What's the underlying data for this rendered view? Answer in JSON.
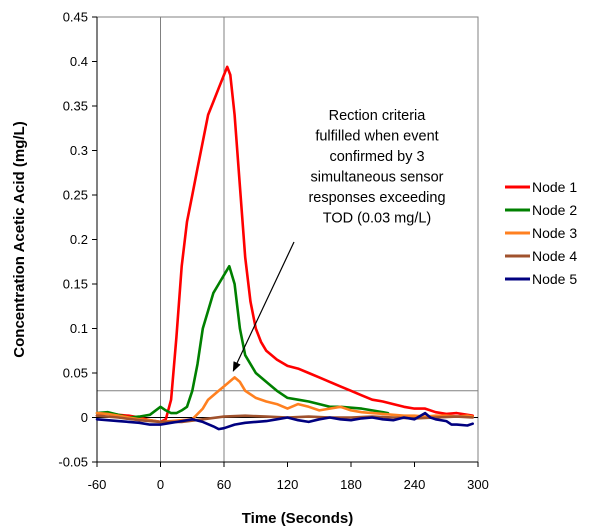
{
  "chart_data": {
    "type": "line",
    "title": "",
    "xlabel": "Time (Seconds)",
    "ylabel": "Concentration Acetic Acid (mg/L)",
    "xlim": [
      -60,
      300
    ],
    "ylim": [
      -0.05,
      0.45
    ],
    "x_ticks": [
      "-60",
      "0",
      "60",
      "120",
      "180",
      "240",
      "300"
    ],
    "x_tick_values": [
      -60,
      0,
      60,
      120,
      180,
      240,
      300
    ],
    "y_ticks": [
      "-0.05",
      "0",
      "0.05",
      "0.1",
      "0.15",
      "0.2",
      "0.25",
      "0.3",
      "0.35",
      "0.4",
      "0.45"
    ],
    "y_tick_values": [
      -0.05,
      0,
      0.05,
      0.1,
      0.15,
      0.2,
      0.25,
      0.3,
      0.35,
      0.4,
      0.45
    ],
    "grid": false,
    "reference_lines": {
      "vertical_x": [
        0,
        60
      ],
      "horizontal_y": [
        0.03
      ]
    },
    "legend": {
      "position": "right"
    },
    "series": [
      {
        "name": "Node 1",
        "color": "#ff0000",
        "x": [
          -60,
          -50,
          -40,
          -30,
          -20,
          -10,
          0,
          5,
          10,
          15,
          20,
          25,
          30,
          35,
          40,
          45,
          50,
          55,
          60,
          63,
          66,
          70,
          75,
          80,
          85,
          90,
          95,
          100,
          110,
          120,
          130,
          140,
          150,
          160,
          170,
          180,
          190,
          200,
          210,
          220,
          230,
          240,
          250,
          260,
          270,
          280,
          290,
          295
        ],
        "y": [
          0.002,
          0.005,
          0.003,
          0.002,
          0,
          -0.003,
          -0.005,
          -0.002,
          0.02,
          0.09,
          0.17,
          0.22,
          0.25,
          0.28,
          0.31,
          0.34,
          0.355,
          0.37,
          0.385,
          0.394,
          0.385,
          0.34,
          0.26,
          0.18,
          0.13,
          0.1,
          0.085,
          0.075,
          0.065,
          0.058,
          0.055,
          0.05,
          0.045,
          0.04,
          0.035,
          0.03,
          0.025,
          0.02,
          0.018,
          0.015,
          0.012,
          0.01,
          0.01,
          0.006,
          0.004,
          0.005,
          0.003,
          0.002
        ]
      },
      {
        "name": "Node 2",
        "color": "#008000",
        "x": [
          -60,
          -50,
          -40,
          -30,
          -20,
          -10,
          0,
          5,
          10,
          15,
          20,
          25,
          30,
          35,
          40,
          45,
          50,
          55,
          60,
          65,
          70,
          75,
          80,
          90,
          100,
          110,
          120,
          130,
          140,
          150,
          160,
          170,
          180,
          190,
          200,
          210,
          215
        ],
        "y": [
          0.005,
          0.006,
          0.003,
          0,
          0.001,
          0.003,
          0.012,
          0.008,
          0.005,
          0.005,
          0.008,
          0.012,
          0.03,
          0.06,
          0.1,
          0.12,
          0.14,
          0.15,
          0.16,
          0.17,
          0.15,
          0.1,
          0.07,
          0.05,
          0.04,
          0.03,
          0.022,
          0.02,
          0.018,
          0.015,
          0.012,
          0.012,
          0.011,
          0.01,
          0.008,
          0.006,
          0.005
        ]
      },
      {
        "name": "Node 3",
        "color": "#ff8020",
        "x": [
          -60,
          -50,
          -40,
          -30,
          -20,
          -10,
          0,
          10,
          20,
          30,
          40,
          45,
          50,
          55,
          60,
          65,
          70,
          75,
          80,
          90,
          100,
          110,
          120,
          130,
          140,
          150,
          160,
          170,
          180,
          190,
          200,
          210,
          220,
          230,
          240,
          250,
          260,
          270,
          280,
          290,
          295
        ],
        "y": [
          0.005,
          0.004,
          0.002,
          0,
          -0.002,
          -0.003,
          -0.005,
          -0.004,
          -0.003,
          -0.002,
          0.01,
          0.02,
          0.025,
          0.03,
          0.035,
          0.04,
          0.045,
          0.04,
          0.03,
          0.022,
          0.018,
          0.015,
          0.01,
          0.015,
          0.012,
          0.008,
          0.01,
          0.012,
          0.008,
          0.006,
          0.005,
          0.004,
          0.003,
          0.002,
          0.002,
          0.001,
          0.002,
          0.002,
          0.001,
          0.002,
          0.001
        ]
      },
      {
        "name": "Node 4",
        "color": "#a0522d",
        "x": [
          -60,
          -40,
          -20,
          0,
          20,
          40,
          60,
          80,
          100,
          120,
          140,
          160,
          180,
          200,
          220,
          240,
          260,
          280,
          295
        ],
        "y": [
          0.002,
          0,
          -0.003,
          -0.005,
          -0.005,
          -0.002,
          0.001,
          0.002,
          0.001,
          0,
          0.001,
          0,
          0,
          0.001,
          0,
          -0.001,
          0,
          0.001,
          0
        ]
      },
      {
        "name": "Node 5",
        "color": "#000080",
        "x": [
          -60,
          -50,
          -40,
          -30,
          -20,
          -10,
          0,
          10,
          20,
          30,
          40,
          50,
          55,
          60,
          70,
          80,
          90,
          100,
          110,
          120,
          130,
          140,
          150,
          160,
          170,
          180,
          190,
          200,
          210,
          220,
          230,
          240,
          250,
          255,
          260,
          270,
          275,
          280,
          290,
          295
        ],
        "y": [
          -0.002,
          -0.003,
          -0.004,
          -0.005,
          -0.006,
          -0.008,
          -0.008,
          -0.006,
          -0.004,
          -0.002,
          -0.005,
          -0.01,
          -0.013,
          -0.012,
          -0.008,
          -0.006,
          -0.005,
          -0.004,
          -0.002,
          0,
          -0.003,
          -0.005,
          -0.002,
          0,
          -0.002,
          -0.003,
          -0.001,
          0,
          -0.002,
          -0.003,
          0,
          -0.002,
          0.005,
          0,
          -0.002,
          -0.004,
          -0.008,
          -0.008,
          -0.009,
          -0.007
        ]
      }
    ],
    "annotation": {
      "lines": [
        "Rection criteria",
        "fulfilled when event",
        "confirmed by 3",
        "simultaneous  sensor",
        "responses exceeding",
        "TOD (0.03 mg/L)"
      ],
      "arrow_to": [
        65,
        0.05
      ]
    }
  }
}
